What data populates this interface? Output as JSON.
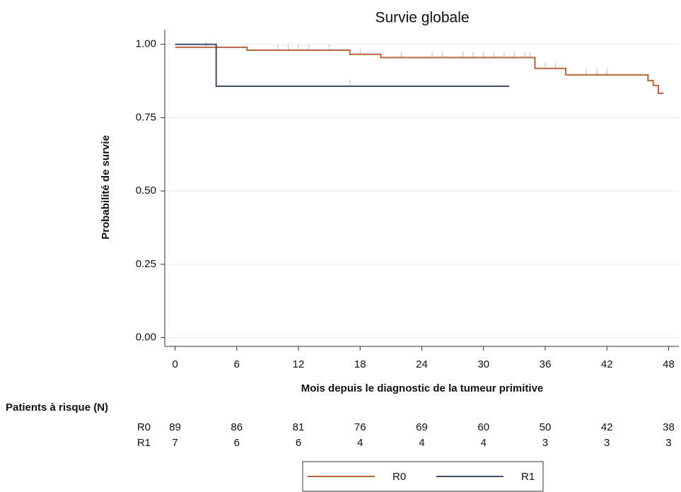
{
  "chart_data": {
    "type": "km",
    "title": "Survie globale",
    "x_label": "Mois depuis le diagnostic de la tumeur primitive",
    "y_label": "Probabilité de survie",
    "xlim": [
      -1,
      49
    ],
    "ylim": [
      -0.03,
      1.05
    ],
    "xticks": [
      0,
      6,
      12,
      18,
      24,
      30,
      36,
      42,
      48
    ],
    "yticks": [
      {
        "value": 0,
        "label": "0.00"
      },
      {
        "value": 0.25,
        "label": "0.25"
      },
      {
        "value": 0.5,
        "label": "0.50"
      },
      {
        "value": 0.75,
        "label": "0.75"
      },
      {
        "value": 1,
        "label": "1.00"
      }
    ],
    "grid": true,
    "series": [
      {
        "name": "R0",
        "color": "#b8643e",
        "x": [
          0,
          7,
          17,
          20,
          35,
          38,
          46,
          46.5,
          47,
          47.5
        ],
        "values": [
          0.99,
          0.98,
          0.966,
          0.955,
          0.918,
          0.896,
          0.876,
          0.86,
          0.833,
          0.833
        ],
        "censored": [
          3,
          10,
          11,
          12,
          13,
          15,
          18,
          22,
          25,
          26,
          28,
          29,
          30,
          31,
          32,
          33,
          34,
          34.5,
          36,
          37,
          40,
          41,
          42
        ]
      },
      {
        "name": "R1",
        "color": "#3e4a6e",
        "x": [
          0,
          4,
          32.5
        ],
        "values": [
          1.0,
          0.857,
          0.857
        ],
        "censored": [
          17
        ]
      }
    ],
    "at_risk_title": "Patients à risque (N)",
    "at_risk": [
      {
        "name": "R0",
        "values": [
          89,
          86,
          81,
          76,
          69,
          60,
          50,
          42,
          38
        ]
      },
      {
        "name": "R1",
        "values": [
          7,
          6,
          6,
          4,
          4,
          4,
          3,
          3,
          3
        ]
      }
    ]
  }
}
